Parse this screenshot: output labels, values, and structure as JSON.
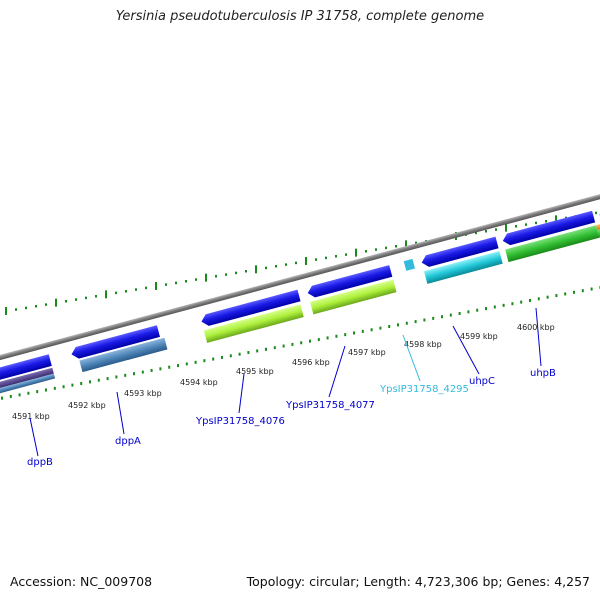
{
  "title": "Yersinia pseudotuberculosis IP 31758, complete genome",
  "footer": {
    "accession": "Accession: NC_009708",
    "topology": "Topology: circular; Length: 4,723,306 bp; Genes: 4,257"
  },
  "ticks": [
    {
      "label": "4591 kbp"
    },
    {
      "label": "4592 kbp"
    },
    {
      "label": "4593 kbp"
    },
    {
      "label": "4594 kbp"
    },
    {
      "label": "4595 kbp"
    },
    {
      "label": "4596 kbp"
    },
    {
      "label": "4597 kbp"
    },
    {
      "label": "4598 kbp"
    },
    {
      "label": "4599 kbp"
    },
    {
      "label": "4600 kbp"
    }
  ],
  "genes": [
    {
      "name": "dppB",
      "color": "#0000cc"
    },
    {
      "name": "dppA",
      "color": "#0000cc"
    },
    {
      "name": "YpsIP31758_4076",
      "color": "#0000cc"
    },
    {
      "name": "YpsIP31758_4077",
      "color": "#0000cc"
    },
    {
      "name": "YpsIP31758_4295",
      "color": "#33bbdd"
    },
    {
      "name": "uhpC",
      "color": "#0000cc"
    },
    {
      "name": "uhpB",
      "color": "#0000cc"
    }
  ],
  "colors": {
    "cds_blue": "#1a1ae6",
    "feature_green": "#aef03c",
    "feature_cyan": "#22c8d8",
    "feature_steel": "#4f86b8",
    "feature_darkgreen": "#33c033",
    "feature_orange": "#ff9a1a",
    "backbone": "#8a8a8a",
    "tick_green": "#1a8a1a"
  }
}
